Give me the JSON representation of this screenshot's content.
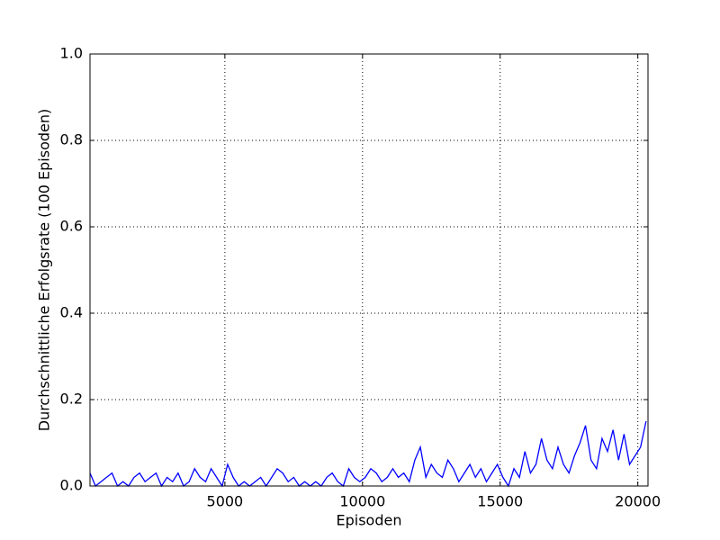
{
  "chart_data": {
    "type": "line",
    "xlabel": "Episoden",
    "ylabel": "Durchschnittliche Erfolgsrate (100 Episoden)",
    "x": [
      100,
      300,
      500,
      700,
      900,
      1100,
      1300,
      1500,
      1700,
      1900,
      2100,
      2300,
      2500,
      2700,
      2900,
      3100,
      3300,
      3500,
      3700,
      3900,
      4100,
      4300,
      4500,
      4700,
      4900,
      5100,
      5300,
      5500,
      5700,
      5900,
      6100,
      6300,
      6500,
      6700,
      6900,
      7100,
      7300,
      7500,
      7700,
      7900,
      8100,
      8300,
      8500,
      8700,
      8900,
      9100,
      9300,
      9500,
      9700,
      9900,
      10100,
      10300,
      10500,
      10700,
      10900,
      11100,
      11300,
      11500,
      11700,
      11900,
      12100,
      12300,
      12500,
      12700,
      12900,
      13100,
      13300,
      13500,
      13700,
      13900,
      14100,
      14300,
      14500,
      14700,
      14900,
      15100,
      15300,
      15500,
      15700,
      15900,
      16100,
      16300,
      16500,
      16700,
      16900,
      17100,
      17300,
      17500,
      17700,
      17900,
      18100,
      18300,
      18500,
      18700,
      18900,
      19100,
      19300,
      19500,
      19700,
      19900,
      20100,
      20300
    ],
    "series": [
      {
        "color": "#0000ff",
        "values": [
          0.03,
          0,
          0.01,
          0.02,
          0.03,
          0,
          0.01,
          0,
          0.02,
          0.03,
          0.01,
          0.02,
          0.03,
          0,
          0.02,
          0.01,
          0.03,
          0,
          0.01,
          0.04,
          0.02,
          0.01,
          0.04,
          0.02,
          0,
          0.05,
          0.02,
          0,
          0.01,
          0,
          0.01,
          0.02,
          0,
          0.02,
          0.04,
          0.03,
          0.01,
          0.02,
          0,
          0.01,
          0,
          0.01,
          0,
          0.02,
          0.03,
          0.01,
          0,
          0.04,
          0.02,
          0.01,
          0.02,
          0.04,
          0.03,
          0.01,
          0.02,
          0.04,
          0.02,
          0.03,
          0.01,
          0.06,
          0.09,
          0.02,
          0.05,
          0.03,
          0.02,
          0.06,
          0.04,
          0.01,
          0.03,
          0.05,
          0.02,
          0.04,
          0.01,
          0.03,
          0.05,
          0.02,
          0,
          0.04,
          0.02,
          0.08,
          0.03,
          0.05,
          0.11,
          0.06,
          0.04,
          0.09,
          0.05,
          0.03,
          0.07,
          0.1,
          0.14,
          0.06,
          0.04,
          0.11,
          0.08,
          0.13,
          0.06,
          0.12,
          0.05,
          0.07,
          0.09,
          0.15
        ]
      }
    ],
    "xlim": [
      100,
      20370
    ],
    "ylim": [
      0,
      1
    ],
    "xticks": [
      5000,
      10000,
      15000,
      20000
    ],
    "yticks": [
      {
        "value": 0,
        "label": "0.0"
      },
      0.2,
      0.4,
      0.6,
      0.8,
      {
        "value": 1,
        "label": "1.0"
      }
    ],
    "grid": true
  }
}
